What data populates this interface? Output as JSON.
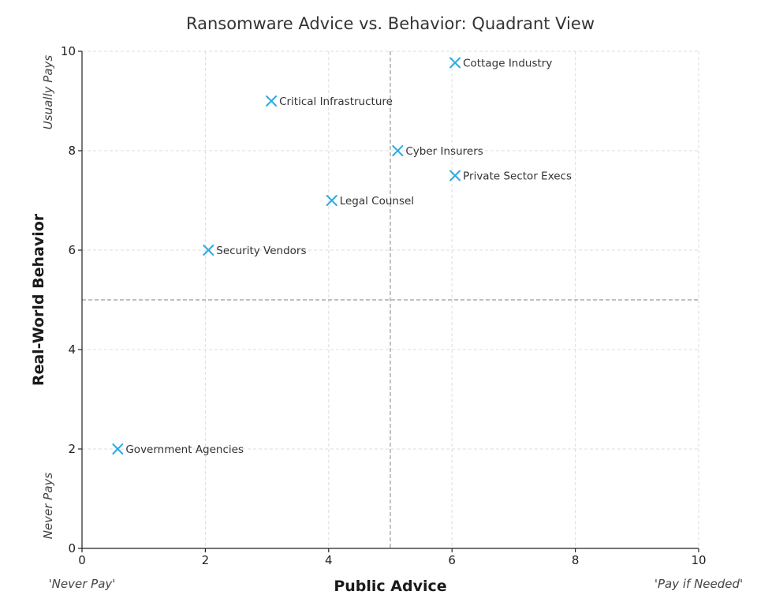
{
  "chart_data": {
    "type": "scatter",
    "title": "Ransomware Advice vs. Behavior: Quadrant View",
    "xlabel": "Public Advice",
    "ylabel": "Real-World Behavior",
    "xlim": [
      0,
      10
    ],
    "ylim": [
      0,
      10
    ],
    "xticks": [
      0,
      2,
      4,
      6,
      8,
      10
    ],
    "yticks": [
      0,
      2,
      4,
      6,
      8,
      10
    ],
    "quadrant_divider": {
      "x": 5,
      "y": 5
    },
    "grid": true,
    "marker": "x",
    "marker_color": "#29abe2",
    "x_axis_end_labels": {
      "low": "'Never Pay'",
      "high": "'Pay if Needed'"
    },
    "y_axis_end_labels": {
      "low": "Never Pays",
      "high": "Usually Pays"
    },
    "points": [
      {
        "label": "Cottage Industry",
        "x": 6.05,
        "y": 9.77
      },
      {
        "label": "Critical Infrastructure",
        "x": 3.07,
        "y": 9.0
      },
      {
        "label": "Cyber Insurers",
        "x": 5.12,
        "y": 8.0
      },
      {
        "label": "Private Sector Execs",
        "x": 6.05,
        "y": 7.5
      },
      {
        "label": "Legal Counsel",
        "x": 4.05,
        "y": 7.0
      },
      {
        "label": "Security Vendors",
        "x": 2.05,
        "y": 6.0
      },
      {
        "label": "Government Agencies",
        "x": 0.58,
        "y": 2.0
      }
    ]
  }
}
